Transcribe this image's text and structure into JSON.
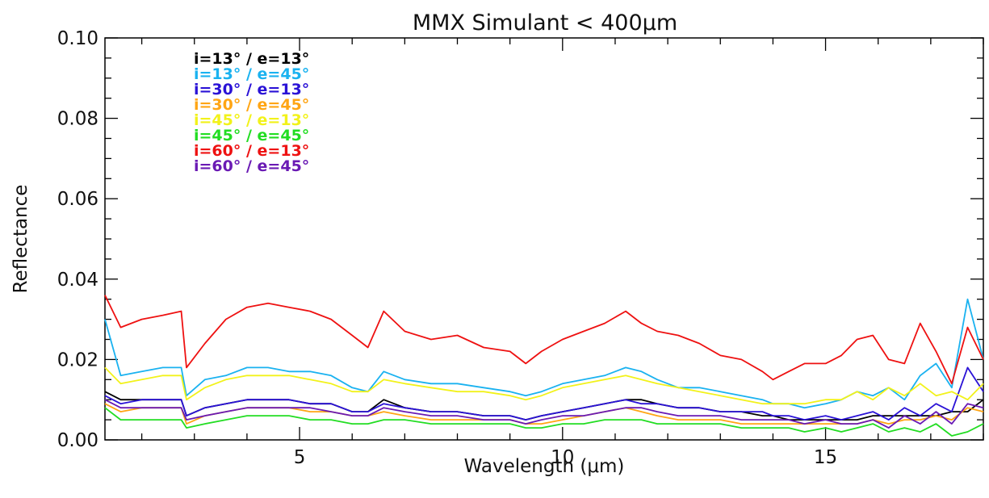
{
  "chart_data": {
    "type": "line",
    "title": "MMX Simulant < 400μm",
    "xlabel": "Wavelength (μm)",
    "ylabel": "Reflectance",
    "xlim": [
      1.3,
      18.0
    ],
    "ylim": [
      0.0,
      0.1
    ],
    "x_ticks": [
      5,
      10,
      15
    ],
    "x_tick_labels": [
      "5",
      "10",
      "15"
    ],
    "y_ticks": [
      0.0,
      0.02,
      0.04,
      0.06,
      0.08,
      0.1
    ],
    "y_tick_labels": [
      "0.00",
      "0.02",
      "0.04",
      "0.06",
      "0.08",
      "0.10"
    ],
    "grid": false,
    "legend_position": "top-left",
    "x": [
      1.3,
      1.6,
      2.0,
      2.4,
      2.75,
      2.85,
      3.2,
      3.6,
      4.0,
      4.4,
      4.8,
      5.2,
      5.6,
      6.0,
      6.3,
      6.6,
      7.0,
      7.5,
      8.0,
      8.5,
      9.0,
      9.3,
      9.6,
      10.0,
      10.4,
      10.8,
      11.2,
      11.5,
      11.8,
      12.2,
      12.6,
      13.0,
      13.4,
      13.8,
      14.0,
      14.3,
      14.6,
      15.0,
      15.3,
      15.6,
      15.9,
      16.2,
      16.5,
      16.8,
      17.1,
      17.4,
      17.7,
      18.0
    ],
    "series": [
      {
        "name": "i=13° / e=13°",
        "color": "#000000",
        "values": [
          0.012,
          0.01,
          0.01,
          0.01,
          0.01,
          0.006,
          0.008,
          0.009,
          0.01,
          0.01,
          0.01,
          0.009,
          0.009,
          0.007,
          0.007,
          0.01,
          0.008,
          0.007,
          0.007,
          0.006,
          0.006,
          0.005,
          0.006,
          0.007,
          0.008,
          0.009,
          0.01,
          0.01,
          0.009,
          0.008,
          0.008,
          0.007,
          0.007,
          0.006,
          0.006,
          0.005,
          0.005,
          0.005,
          0.005,
          0.005,
          0.006,
          0.006,
          0.006,
          0.006,
          0.006,
          0.007,
          0.007,
          0.01
        ]
      },
      {
        "name": "i=13° / e=45°",
        "color": "#1ab2f0",
        "values": [
          0.03,
          0.016,
          0.017,
          0.018,
          0.018,
          0.011,
          0.015,
          0.016,
          0.018,
          0.018,
          0.017,
          0.017,
          0.016,
          0.013,
          0.012,
          0.017,
          0.015,
          0.014,
          0.014,
          0.013,
          0.012,
          0.011,
          0.012,
          0.014,
          0.015,
          0.016,
          0.018,
          0.017,
          0.015,
          0.013,
          0.013,
          0.012,
          0.011,
          0.01,
          0.009,
          0.009,
          0.008,
          0.009,
          0.01,
          0.012,
          0.011,
          0.013,
          0.01,
          0.016,
          0.019,
          0.013,
          0.035,
          0.02
        ]
      },
      {
        "name": "i=30° / e=13°",
        "color": "#2a12d6",
        "values": [
          0.011,
          0.009,
          0.01,
          0.01,
          0.01,
          0.006,
          0.008,
          0.009,
          0.01,
          0.01,
          0.01,
          0.009,
          0.009,
          0.007,
          0.007,
          0.009,
          0.008,
          0.007,
          0.007,
          0.006,
          0.006,
          0.005,
          0.006,
          0.007,
          0.008,
          0.009,
          0.01,
          0.009,
          0.009,
          0.008,
          0.008,
          0.007,
          0.007,
          0.007,
          0.006,
          0.006,
          0.005,
          0.006,
          0.005,
          0.006,
          0.007,
          0.005,
          0.008,
          0.006,
          0.009,
          0.007,
          0.018,
          0.012
        ]
      },
      {
        "name": "i=30° / e=45°",
        "color": "#ffa514",
        "values": [
          0.009,
          0.007,
          0.008,
          0.008,
          0.008,
          0.004,
          0.006,
          0.007,
          0.008,
          0.008,
          0.008,
          0.007,
          0.007,
          0.006,
          0.006,
          0.007,
          0.006,
          0.005,
          0.005,
          0.005,
          0.005,
          0.004,
          0.004,
          0.005,
          0.006,
          0.007,
          0.008,
          0.007,
          0.006,
          0.005,
          0.005,
          0.005,
          0.004,
          0.004,
          0.004,
          0.004,
          0.004,
          0.004,
          0.004,
          0.004,
          0.005,
          0.004,
          0.005,
          0.005,
          0.006,
          0.005,
          0.008,
          0.007
        ]
      },
      {
        "name": "i=45° / e=13°",
        "color": "#f2f21a",
        "values": [
          0.018,
          0.014,
          0.015,
          0.016,
          0.016,
          0.01,
          0.013,
          0.015,
          0.016,
          0.016,
          0.016,
          0.015,
          0.014,
          0.012,
          0.012,
          0.015,
          0.014,
          0.013,
          0.012,
          0.012,
          0.011,
          0.01,
          0.011,
          0.013,
          0.014,
          0.015,
          0.016,
          0.015,
          0.014,
          0.013,
          0.012,
          0.011,
          0.01,
          0.009,
          0.009,
          0.009,
          0.009,
          0.01,
          0.01,
          0.012,
          0.01,
          0.013,
          0.011,
          0.014,
          0.011,
          0.012,
          0.01,
          0.014
        ]
      },
      {
        "name": "i=45° / e=45°",
        "color": "#22dd22",
        "values": [
          0.008,
          0.005,
          0.005,
          0.005,
          0.005,
          0.003,
          0.004,
          0.005,
          0.006,
          0.006,
          0.006,
          0.005,
          0.005,
          0.004,
          0.004,
          0.005,
          0.005,
          0.004,
          0.004,
          0.004,
          0.004,
          0.003,
          0.003,
          0.004,
          0.004,
          0.005,
          0.005,
          0.005,
          0.004,
          0.004,
          0.004,
          0.004,
          0.003,
          0.003,
          0.003,
          0.003,
          0.002,
          0.003,
          0.002,
          0.003,
          0.004,
          0.002,
          0.003,
          0.002,
          0.004,
          0.001,
          0.002,
          0.004
        ]
      },
      {
        "name": "i=60° / e=13°",
        "color": "#ee1111",
        "values": [
          0.036,
          0.028,
          0.03,
          0.031,
          0.032,
          0.018,
          0.024,
          0.03,
          0.033,
          0.034,
          0.033,
          0.032,
          0.03,
          0.026,
          0.023,
          0.032,
          0.027,
          0.025,
          0.026,
          0.023,
          0.022,
          0.019,
          0.022,
          0.025,
          0.027,
          0.029,
          0.032,
          0.029,
          0.027,
          0.026,
          0.024,
          0.021,
          0.02,
          0.017,
          0.015,
          0.017,
          0.019,
          0.019,
          0.021,
          0.025,
          0.026,
          0.02,
          0.019,
          0.029,
          0.022,
          0.014,
          0.028,
          0.02
        ]
      },
      {
        "name": "i=60° / e=45°",
        "color": "#6a1ab4",
        "values": [
          0.01,
          0.008,
          0.008,
          0.008,
          0.008,
          0.005,
          0.006,
          0.007,
          0.008,
          0.008,
          0.008,
          0.008,
          0.007,
          0.006,
          0.006,
          0.008,
          0.007,
          0.006,
          0.006,
          0.005,
          0.005,
          0.004,
          0.005,
          0.006,
          0.006,
          0.007,
          0.008,
          0.008,
          0.007,
          0.006,
          0.006,
          0.006,
          0.005,
          0.005,
          0.005,
          0.005,
          0.004,
          0.005,
          0.004,
          0.004,
          0.005,
          0.003,
          0.006,
          0.004,
          0.007,
          0.004,
          0.009,
          0.008
        ]
      }
    ]
  }
}
